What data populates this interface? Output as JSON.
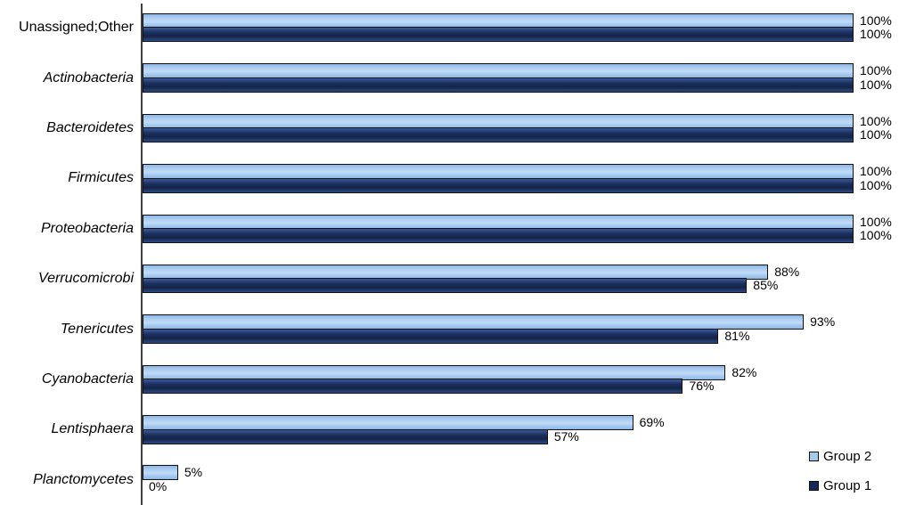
{
  "chart_data": {
    "type": "bar",
    "orientation": "horizontal",
    "title": "",
    "xlabel": "",
    "ylabel": "",
    "xlim": [
      0,
      100
    ],
    "grid": false,
    "legend_position": "bottom-right",
    "value_suffix": "%",
    "categories": [
      "Unassigned;Other",
      "Actinobacteria",
      "Bacteroidetes",
      "Firmicutes",
      "Proteobacteria",
      "Verrucomicrobi",
      "Tenericutes",
      "Cyanobacteria",
      "Lentisphaera",
      "Planctomycetes"
    ],
    "categories_italic": [
      false,
      true,
      true,
      true,
      true,
      true,
      true,
      true,
      true,
      true
    ],
    "series": [
      {
        "name": "Group 2",
        "color": "#A6C9EE",
        "values": [
          100,
          100,
          100,
          100,
          100,
          88,
          93,
          82,
          69,
          5
        ],
        "labels": [
          "100%",
          "100%",
          "100%",
          "100%",
          "100%",
          "88%",
          "93%",
          "82%",
          "69%",
          "5%"
        ]
      },
      {
        "name": "Group 1",
        "color": "#16295A",
        "values": [
          100,
          100,
          100,
          100,
          100,
          85,
          81,
          76,
          57,
          0
        ],
        "labels": [
          "100%",
          "100%",
          "100%",
          "100%",
          "100%",
          "85%",
          "81%",
          "76%",
          "57%",
          "0%"
        ]
      }
    ]
  },
  "colors": {
    "group2_fill": "#A6C9EE",
    "group1_fill": "#16295A",
    "bar_border": "#101010",
    "axis_line": "#3F3F3F",
    "text": "#000000",
    "background": "#FFFFFF"
  },
  "legend": {
    "items": [
      {
        "label": "Group 2",
        "color": "#A6C9EE"
      },
      {
        "label": "Group 1",
        "color": "#16295A"
      }
    ]
  }
}
